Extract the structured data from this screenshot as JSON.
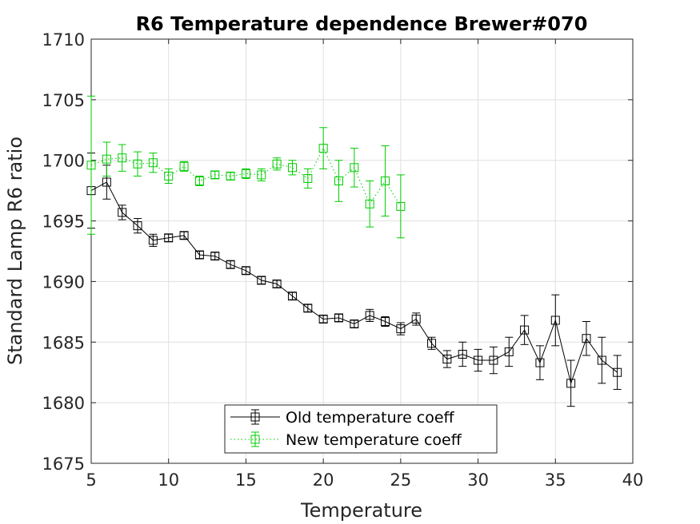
{
  "chart_data": {
    "type": "line",
    "title": "R6 Temperature dependence Brewer#070",
    "xlabel": "Temperature",
    "ylabel": "Standard Lamp R6 ratio",
    "xlim": [
      5,
      40
    ],
    "ylim": [
      1675,
      1710
    ],
    "xticks": [
      "5",
      "10",
      "15",
      "20",
      "25",
      "30",
      "35",
      "40"
    ],
    "yticks": [
      "1675",
      "1680",
      "1685",
      "1690",
      "1695",
      "1700",
      "1705",
      "1710"
    ],
    "grid": true,
    "legend_position": "bottom-center",
    "series": [
      {
        "name": "Old temperature coeff",
        "color": "#000000",
        "line_style": "solid",
        "marker": "square",
        "x": [
          5,
          6,
          7,
          8,
          9,
          10,
          11,
          12,
          13,
          14,
          15,
          16,
          17,
          18,
          19,
          20,
          21,
          22,
          23,
          24,
          25,
          26,
          27,
          28,
          29,
          30,
          31,
          32,
          33,
          34,
          35,
          36,
          37,
          38,
          39
        ],
        "y": [
          1697.5,
          1698.2,
          1695.7,
          1694.6,
          1693.4,
          1693.6,
          1693.8,
          1692.2,
          1692.1,
          1691.4,
          1690.9,
          1690.1,
          1689.8,
          1688.8,
          1687.8,
          1686.9,
          1687.0,
          1686.5,
          1687.2,
          1686.7,
          1686.1,
          1686.9,
          1684.9,
          1683.6,
          1684.0,
          1683.5,
          1683.5,
          1684.2,
          1686.0,
          1683.3,
          1686.8,
          1681.6,
          1685.3,
          1683.5,
          1682.5
        ],
        "err": [
          3.1,
          1.4,
          0.6,
          0.6,
          0.5,
          0.3,
          0.3,
          0.3,
          0.3,
          0.3,
          0.3,
          0.3,
          0.3,
          0.3,
          0.3,
          0.3,
          0.3,
          0.3,
          0.5,
          0.4,
          0.5,
          0.5,
          0.5,
          0.7,
          1.0,
          0.9,
          1.1,
          1.2,
          1.2,
          1.4,
          2.1,
          1.9,
          1.4,
          1.9,
          1.4
        ]
      },
      {
        "name": "New temperature coeff",
        "color": "#00cc00",
        "line_style": "dotted",
        "marker": "square",
        "x": [
          5,
          6,
          7,
          8,
          9,
          10,
          11,
          12,
          13,
          14,
          15,
          16,
          17,
          18,
          19,
          20,
          21,
          22,
          23,
          24,
          25
        ],
        "y": [
          1699.6,
          1700.1,
          1700.2,
          1699.7,
          1699.8,
          1698.7,
          1699.5,
          1698.3,
          1698.8,
          1698.7,
          1698.9,
          1698.8,
          1699.7,
          1699.4,
          1698.5,
          1701.0,
          1698.3,
          1699.4,
          1696.4,
          1698.3,
          1696.2
        ],
        "err": [
          5.7,
          1.4,
          1.1,
          1.0,
          0.8,
          0.6,
          0.4,
          0.4,
          0.3,
          0.3,
          0.4,
          0.5,
          0.5,
          0.6,
          0.8,
          1.7,
          1.7,
          1.6,
          1.9,
          2.9,
          2.6
        ]
      }
    ]
  }
}
